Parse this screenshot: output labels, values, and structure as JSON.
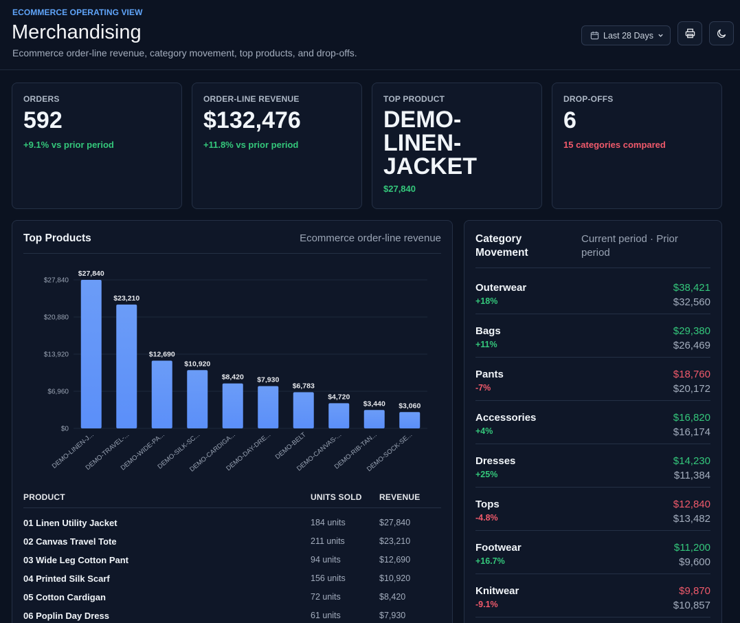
{
  "header": {
    "eyebrow": "ECOMMERCE OPERATING VIEW",
    "title": "Merchandising",
    "subtitle": "Ecommerce order-line revenue, category movement, top products, and drop-offs.",
    "date_range": "Last 28 Days",
    "icons": {
      "calendar": "calendar-icon",
      "chevron": "chevron-down-icon",
      "print": "print-icon",
      "theme": "moon-icon"
    }
  },
  "kpis": [
    {
      "label": "ORDERS",
      "value": "592",
      "delta": "+9.1% vs prior period",
      "tone": "green"
    },
    {
      "label": "ORDER-LINE REVENUE",
      "value": "$132,476",
      "delta": "+11.8% vs prior period",
      "tone": "green"
    },
    {
      "label": "TOP PRODUCT",
      "value_lines": [
        "DEMO-",
        "LINEN-",
        "JACKET"
      ],
      "delta": "$27,840",
      "tone": "green"
    },
    {
      "label": "DROP-OFFS",
      "value": "6",
      "delta": "15 categories compared",
      "tone": "red"
    }
  ],
  "top_products": {
    "title": "Top Products",
    "subtitle": "Ecommerce order-line revenue",
    "columns": [
      "PRODUCT",
      "UNITS SOLD",
      "REVENUE"
    ],
    "rows": [
      {
        "product": "01 Linen Utility Jacket",
        "units": "184 units",
        "revenue": "$27,840"
      },
      {
        "product": "02 Canvas Travel Tote",
        "units": "211 units",
        "revenue": "$23,210"
      },
      {
        "product": "03 Wide Leg Cotton Pant",
        "units": "94 units",
        "revenue": "$12,690"
      },
      {
        "product": "04 Printed Silk Scarf",
        "units": "156 units",
        "revenue": "$10,920"
      },
      {
        "product": "05 Cotton Cardigan",
        "units": "72 units",
        "revenue": "$8,420"
      },
      {
        "product": "06 Poplin Day Dress",
        "units": "61 units",
        "revenue": "$7,930"
      }
    ]
  },
  "chart_data": {
    "type": "bar",
    "categories": [
      "DEMO-LINEN-J...",
      "DEMO-TRAVEL-...",
      "DEMO-WIDE-PA...",
      "DEMO-SILK-SC...",
      "DEMO-CARDIGA...",
      "DEMO-DAY-DRE...",
      "DEMO-BELT",
      "DEMO-CANVAS-...",
      "DEMO-RIB-TAN...",
      "DEMO-SOCK-SE..."
    ],
    "values": [
      27840,
      23210,
      12690,
      10920,
      8420,
      7930,
      6783,
      4720,
      3440,
      3060
    ],
    "value_labels": [
      "$27,840",
      "$23,210",
      "$12,690",
      "$10,920",
      "$8,420",
      "$7,930",
      "$6,783",
      "$4,720",
      "$3,440",
      "$3,060"
    ],
    "y_ticks": [
      0,
      6960,
      13920,
      20880,
      27840
    ],
    "y_tick_labels": [
      "$0",
      "$6,960",
      "$13,920",
      "$20,880",
      "$27,840"
    ],
    "ylim": [
      0,
      27840
    ],
    "grid": true,
    "bar_color": "#5b8ff9"
  },
  "category_movement": {
    "title_lines": [
      "Category",
      "Movement"
    ],
    "subtitle_lines": [
      "Current period · Prior",
      "period"
    ],
    "rows": [
      {
        "name": "Outerwear",
        "delta": "+18%",
        "current": "$38,421",
        "prior": "$32,560",
        "tone": "green"
      },
      {
        "name": "Bags",
        "delta": "+11%",
        "current": "$29,380",
        "prior": "$26,469",
        "tone": "green"
      },
      {
        "name": "Pants",
        "delta": "-7%",
        "current": "$18,760",
        "prior": "$20,172",
        "tone": "red"
      },
      {
        "name": "Accessories",
        "delta": "+4%",
        "current": "$16,820",
        "prior": "$16,174",
        "tone": "green"
      },
      {
        "name": "Dresses",
        "delta": "+25%",
        "current": "$14,230",
        "prior": "$11,384",
        "tone": "green"
      },
      {
        "name": "Tops",
        "delta": "-4.8%",
        "current": "$12,840",
        "prior": "$13,482",
        "tone": "red"
      },
      {
        "name": "Footwear",
        "delta": "+16.7%",
        "current": "$11,200",
        "prior": "$9,600",
        "tone": "green"
      },
      {
        "name": "Knitwear",
        "delta": "-9.1%",
        "current": "$9,870",
        "prior": "$10,857",
        "tone": "red"
      }
    ]
  }
}
